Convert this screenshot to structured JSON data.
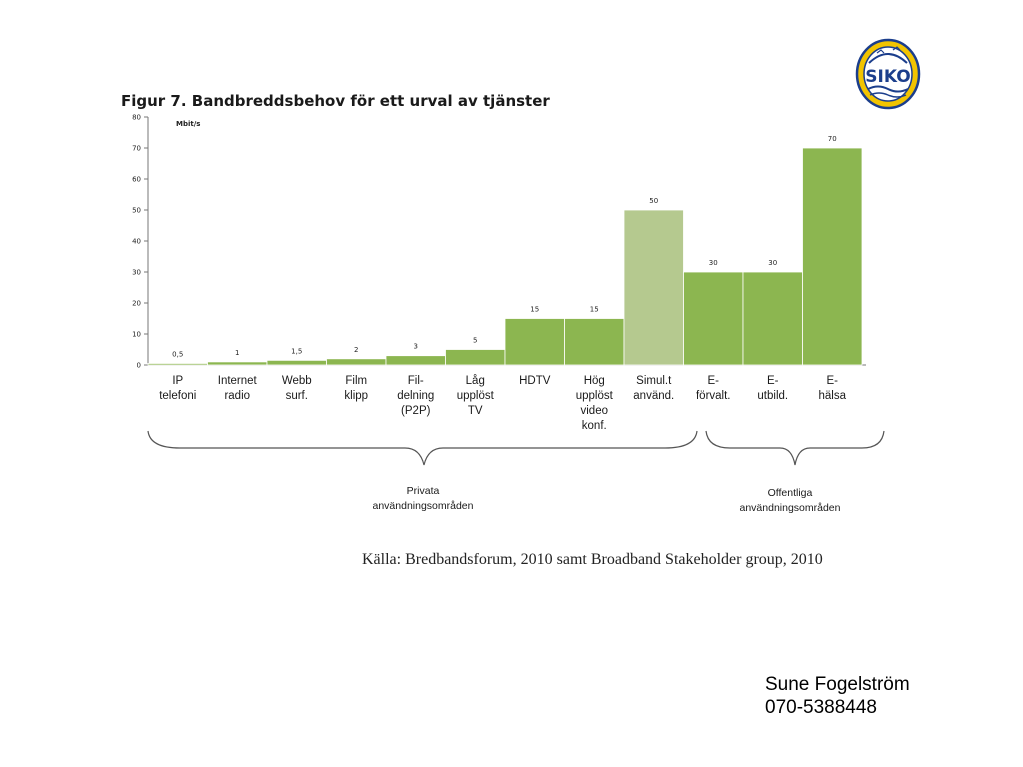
{
  "logo": {
    "text": "SIKO"
  },
  "figure": {
    "source": "Källa: Bredbandsforum, 2010 samt Broadband Stakeholder group, 2010"
  },
  "groups": [
    {
      "lines": [
        "Privata",
        "användningsområden"
      ]
    },
    {
      "lines": [
        "Offentliga",
        "användningsområden"
      ]
    }
  ],
  "colors": {
    "bar": "#8cb650",
    "bar_highlight": "#b5c98f",
    "axis": "#777777"
  },
  "chart_data": {
    "type": "bar",
    "title": "Figur 7. Bandbreddsbehov för ett urval av tjänster",
    "ylabel": "Mbit/s",
    "ylim": [
      0,
      80
    ],
    "yticks": [
      "0",
      "10",
      "20",
      "30",
      "40",
      "50",
      "60",
      "70",
      "80"
    ],
    "categories": [
      [
        "IP",
        "telefoni"
      ],
      [
        "Internet",
        "radio"
      ],
      [
        "Webb",
        "surf."
      ],
      [
        "Film",
        "klipp"
      ],
      [
        "Fil-",
        "delning",
        "(P2P)"
      ],
      [
        "Låg",
        "upplöst",
        "TV"
      ],
      [
        "HDTV"
      ],
      [
        "Hög",
        "upplöst",
        "video",
        "konf."
      ],
      [
        "Simul.t",
        "använd."
      ],
      [
        "E-",
        "förvalt."
      ],
      [
        "E-",
        "utbild."
      ],
      [
        "E-",
        "hälsa"
      ]
    ],
    "values": [
      0.5,
      1,
      1.5,
      2,
      3,
      5,
      15,
      15,
      50,
      30,
      30,
      70
    ],
    "value_labels": [
      "0,5",
      "1",
      "1,5",
      "2",
      "3",
      "5",
      "15",
      "15",
      "50",
      "30",
      "30",
      "70"
    ],
    "highlighted_index": 8,
    "grid": false,
    "legend": "none"
  },
  "footer": {
    "name": "Sune Fogelström",
    "phone": "070-5388448"
  }
}
